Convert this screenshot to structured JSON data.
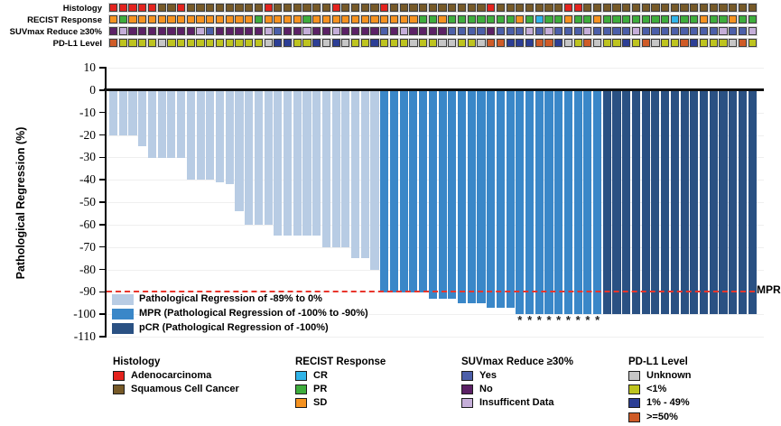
{
  "annotation_tracks": {
    "rows": [
      {
        "label": "Histology",
        "palette": "histology",
        "values": [
          "ADC",
          "ADC",
          "ADC",
          "ADC",
          "ADC",
          "SCC",
          "SCC",
          "ADC",
          "SCC",
          "SCC",
          "SCC",
          "SCC",
          "SCC",
          "SCC",
          "SCC",
          "SCC",
          "ADC",
          "SCC",
          "SCC",
          "SCC",
          "SCC",
          "SCC",
          "SCC",
          "ADC",
          "SCC",
          "SCC",
          "SCC",
          "SCC",
          "ADC",
          "SCC",
          "SCC",
          "SCC",
          "SCC",
          "SCC",
          "SCC",
          "SCC",
          "SCC",
          "SCC",
          "SCC",
          "ADC",
          "SCC",
          "SCC",
          "SCC",
          "SCC",
          "SCC",
          "SCC",
          "SCC",
          "ADC",
          "ADC",
          "SCC",
          "SCC",
          "SCC",
          "SCC",
          "SCC",
          "SCC",
          "SCC",
          "SCC",
          "SCC",
          "SCC",
          "SCC",
          "SCC",
          "SCC",
          "SCC",
          "SCC",
          "SCC",
          "SCC",
          "SCC"
        ]
      },
      {
        "label": "RECIST Response",
        "palette": "recist",
        "values": [
          "SD",
          "PR",
          "SD",
          "SD",
          "SD",
          "SD",
          "SD",
          "SD",
          "SD",
          "SD",
          "SD",
          "SD",
          "SD",
          "SD",
          "SD",
          "PR",
          "SD",
          "SD",
          "SD",
          "SD",
          "PR",
          "SD",
          "SD",
          "SD",
          "SD",
          "SD",
          "SD",
          "SD",
          "SD",
          "SD",
          "SD",
          "SD",
          "PR",
          "PR",
          "SD",
          "PR",
          "PR",
          "PR",
          "PR",
          "PR",
          "PR",
          "PR",
          "SD",
          "PR",
          "CR",
          "PR",
          "PR",
          "SD",
          "PR",
          "PR",
          "SD",
          "PR",
          "PR",
          "PR",
          "PR",
          "PR",
          "PR",
          "PR",
          "CR",
          "PR",
          "PR",
          "SD",
          "PR",
          "PR",
          "SD",
          "PR",
          "PR"
        ]
      },
      {
        "label": "SUVmax Reduce ≥30%",
        "palette": "suv",
        "values": [
          "NO",
          "ID",
          "NO",
          "NO",
          "NO",
          "NO",
          "NO",
          "NO",
          "NO",
          "ID",
          "YES",
          "NO",
          "NO",
          "NO",
          "NO",
          "NO",
          "ID",
          "YES",
          "NO",
          "NO",
          "ID",
          "NO",
          "NO",
          "ID",
          "NO",
          "NO",
          "NO",
          "NO",
          "YES",
          "NO",
          "ID",
          "NO",
          "NO",
          "NO",
          "NO",
          "YES",
          "YES",
          "YES",
          "YES",
          "NO",
          "YES",
          "YES",
          "YES",
          "ID",
          "YES",
          "ID",
          "YES",
          "YES",
          "YES",
          "ID",
          "YES",
          "YES",
          "YES",
          "YES",
          "ID",
          "YES",
          "YES",
          "YES",
          "YES",
          "YES",
          "YES",
          "YES",
          "YES",
          "ID",
          "YES",
          "YES",
          "ID"
        ]
      },
      {
        "label": "PD-L1 Level",
        "palette": "pdl1",
        "values": [
          "GE50",
          "LT1",
          "LT1",
          "LT1",
          "LT1",
          "UNK",
          "LT1",
          "LT1",
          "LT1",
          "LT1",
          "LT1",
          "LT1",
          "LT1",
          "LT1",
          "LT1",
          "LT1",
          "UNK",
          "M49",
          "M49",
          "LT1",
          "LT1",
          "M49",
          "UNK",
          "M49",
          "UNK",
          "LT1",
          "LT1",
          "M49",
          "LT1",
          "LT1",
          "LT1",
          "UNK",
          "LT1",
          "LT1",
          "UNK",
          "UNK",
          "LT1",
          "LT1",
          "UNK",
          "GE50",
          "GE50",
          "M49",
          "M49",
          "M49",
          "GE50",
          "GE50",
          "M49",
          "UNK",
          "LT1",
          "GE50",
          "UNK",
          "LT1",
          "LT1",
          "M49",
          "LT1",
          "GE50",
          "UNK",
          "LT1",
          "LT1",
          "GE50",
          "M49",
          "LT1",
          "LT1",
          "LT1",
          "UNK",
          "GE50",
          "LT1"
        ]
      }
    ],
    "palettes": {
      "histology": {
        "ADC": "#e4231e",
        "SCC": "#775a28"
      },
      "recist": {
        "CR": "#30b4e8",
        "PR": "#3ead3c",
        "SD": "#f59220"
      },
      "suv": {
        "YES": "#4c5fa9",
        "NO": "#5c2166",
        "ID": "#c5aed9"
      },
      "pdl1": {
        "UNK": "#c6c6c6",
        "LT1": "#bec41f",
        "M49": "#2c3e95",
        "GE50": "#cf5b27"
      }
    }
  },
  "chart_data": {
    "type": "bar",
    "title": "",
    "xlabel": "",
    "ylabel": "Pathological Regression (%)",
    "ylim": [
      -110,
      10
    ],
    "yticks": [
      10,
      0,
      -10,
      -20,
      -30,
      -40,
      -50,
      -60,
      -70,
      -80,
      -90,
      -100,
      -110
    ],
    "grid": "horizontal-light",
    "n_patients": 67,
    "values": [
      -20,
      -20,
      -20,
      -25,
      -30,
      -30,
      -30,
      -30,
      -40,
      -40,
      -40,
      -41,
      -42,
      -54,
      -60,
      -60,
      -60,
      -65,
      -65,
      -65,
      -65,
      -65,
      -70,
      -70,
      -70,
      -75,
      -75,
      -80,
      -90,
      -90,
      -90,
      -90,
      -90,
      -93,
      -93,
      -93,
      -95,
      -95,
      -95,
      -97,
      -97,
      -97,
      -100,
      -100,
      -100,
      -100,
      -100,
      -100,
      -100,
      -100,
      -100,
      -100,
      -100,
      -100,
      -100,
      -100,
      -100,
      -100,
      -100,
      -100,
      -100,
      -100,
      -100,
      -100,
      -100,
      -100,
      -100
    ],
    "category": [
      "L",
      "L",
      "L",
      "L",
      "L",
      "L",
      "L",
      "L",
      "L",
      "L",
      "L",
      "L",
      "L",
      "L",
      "L",
      "L",
      "L",
      "L",
      "L",
      "L",
      "L",
      "L",
      "L",
      "L",
      "L",
      "L",
      "L",
      "L",
      "M",
      "M",
      "M",
      "M",
      "M",
      "M",
      "M",
      "M",
      "M",
      "M",
      "M",
      "M",
      "M",
      "M",
      "M",
      "M",
      "M",
      "M",
      "M",
      "M",
      "M",
      "M",
      "M",
      "D",
      "D",
      "D",
      "D",
      "D",
      "D",
      "D",
      "D",
      "D",
      "D",
      "D",
      "D",
      "D",
      "D",
      "D",
      "D"
    ],
    "category_colors": {
      "L": "#b8cce4",
      "M": "#3a87c8",
      "D": "#2a5183"
    },
    "asterisk_bars": [
      43,
      44,
      45,
      46,
      47,
      48,
      49,
      50,
      51
    ],
    "asterisk_glyph": "*",
    "mpr_line": {
      "y": -90,
      "label": "MPR",
      "color": "#e8352b",
      "style": "dashed"
    },
    "legend_position": "inside-bottom-left",
    "legend": {
      "items": [
        {
          "cat": "L",
          "label": "Pathological Regression of -89% to 0%"
        },
        {
          "cat": "M",
          "label": "MPR (Pathological Regression of -100% to -90%)"
        },
        {
          "cat": "D",
          "label": "pCR (Pathological Regression of -100%)"
        }
      ]
    }
  },
  "bottom_legend": {
    "groups": [
      {
        "header": "Histology",
        "palette": "histology",
        "items": [
          {
            "code": "ADC",
            "label": "Adenocarcinoma"
          },
          {
            "code": "SCC",
            "label": "Squamous Cell Cancer"
          }
        ]
      },
      {
        "header": "RECIST Response",
        "palette": "recist",
        "items": [
          {
            "code": "CR",
            "label": "CR"
          },
          {
            "code": "PR",
            "label": "PR"
          },
          {
            "code": "SD",
            "label": "SD"
          }
        ]
      },
      {
        "header": "SUVmax Reduce ≥30%",
        "palette": "suv",
        "items": [
          {
            "code": "YES",
            "label": "Yes"
          },
          {
            "code": "NO",
            "label": "No"
          },
          {
            "code": "ID",
            "label": "Insufficent Data"
          }
        ]
      },
      {
        "header": "PD-L1 Level",
        "palette": "pdl1",
        "items": [
          {
            "code": "UNK",
            "label": "Unknown"
          },
          {
            "code": "LT1",
            "label": "<1%"
          },
          {
            "code": "M49",
            "label": "1% - 49%"
          },
          {
            "code": "GE50",
            "label": ">=50%"
          }
        ]
      }
    ]
  }
}
